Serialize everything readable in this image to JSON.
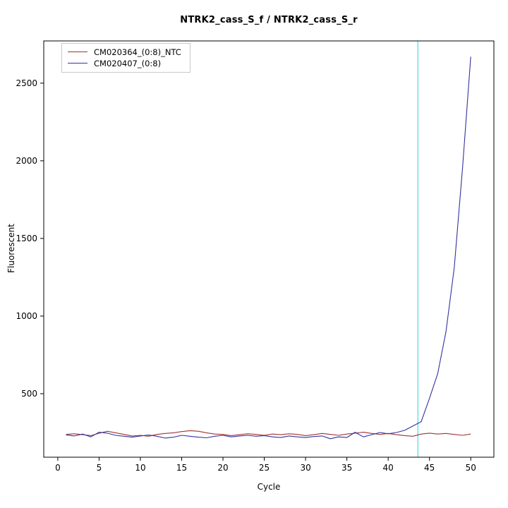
{
  "chart_data": {
    "type": "line",
    "title": "NTRK2_cass_S_f / NTRK2_cass_S_r",
    "xlabel": "Cycle",
    "ylabel": "Fluorescent",
    "grid": false,
    "legend_position": "top-left",
    "xlim": [
      -1.7,
      52.8
    ],
    "ylim": [
      91,
      2772
    ],
    "x_ticks": [
      0,
      5,
      10,
      15,
      20,
      25,
      30,
      35,
      40,
      45,
      50
    ],
    "y_ticks": [
      500,
      1000,
      1500,
      2000,
      2500
    ],
    "threshold_cycle": 43.6,
    "colors": {
      "threshold_line": "#5CDDE8",
      "axis": "#000000",
      "background": "#ffffff"
    },
    "x": [
      1,
      2,
      3,
      4,
      5,
      6,
      7,
      8,
      9,
      10,
      11,
      12,
      13,
      14,
      15,
      16,
      17,
      18,
      19,
      20,
      21,
      22,
      23,
      24,
      25,
      26,
      27,
      28,
      29,
      30,
      31,
      32,
      33,
      34,
      35,
      36,
      37,
      38,
      39,
      40,
      41,
      42,
      43,
      44,
      45,
      46,
      47,
      48,
      49,
      50
    ],
    "series": [
      {
        "name": "CM020364_(0:8)_NTC",
        "color": "#A03333",
        "values": [
          238,
          242,
          236,
          230,
          245,
          258,
          248,
          238,
          228,
          232,
          226,
          238,
          244,
          248,
          256,
          262,
          258,
          248,
          240,
          238,
          230,
          236,
          242,
          238,
          232,
          240,
          236,
          242,
          238,
          230,
          236,
          244,
          238,
          232,
          240,
          246,
          252,
          244,
          238,
          244,
          236,
          230,
          226,
          240,
          246,
          240,
          244,
          238,
          232,
          240
        ]
      },
      {
        "name": "CM020407_(0:8)",
        "color": "#3333A0",
        "values": [
          235,
          228,
          240,
          222,
          252,
          246,
          232,
          226,
          220,
          228,
          234,
          226,
          214,
          220,
          232,
          226,
          220,
          216,
          226,
          232,
          222,
          228,
          232,
          226,
          230,
          222,
          218,
          228,
          222,
          218,
          224,
          228,
          210,
          222,
          218,
          252,
          222,
          236,
          250,
          242,
          250,
          264,
          292,
          320,
          470,
          630,
          900,
          1310,
          1950,
          2670
        ]
      }
    ]
  }
}
